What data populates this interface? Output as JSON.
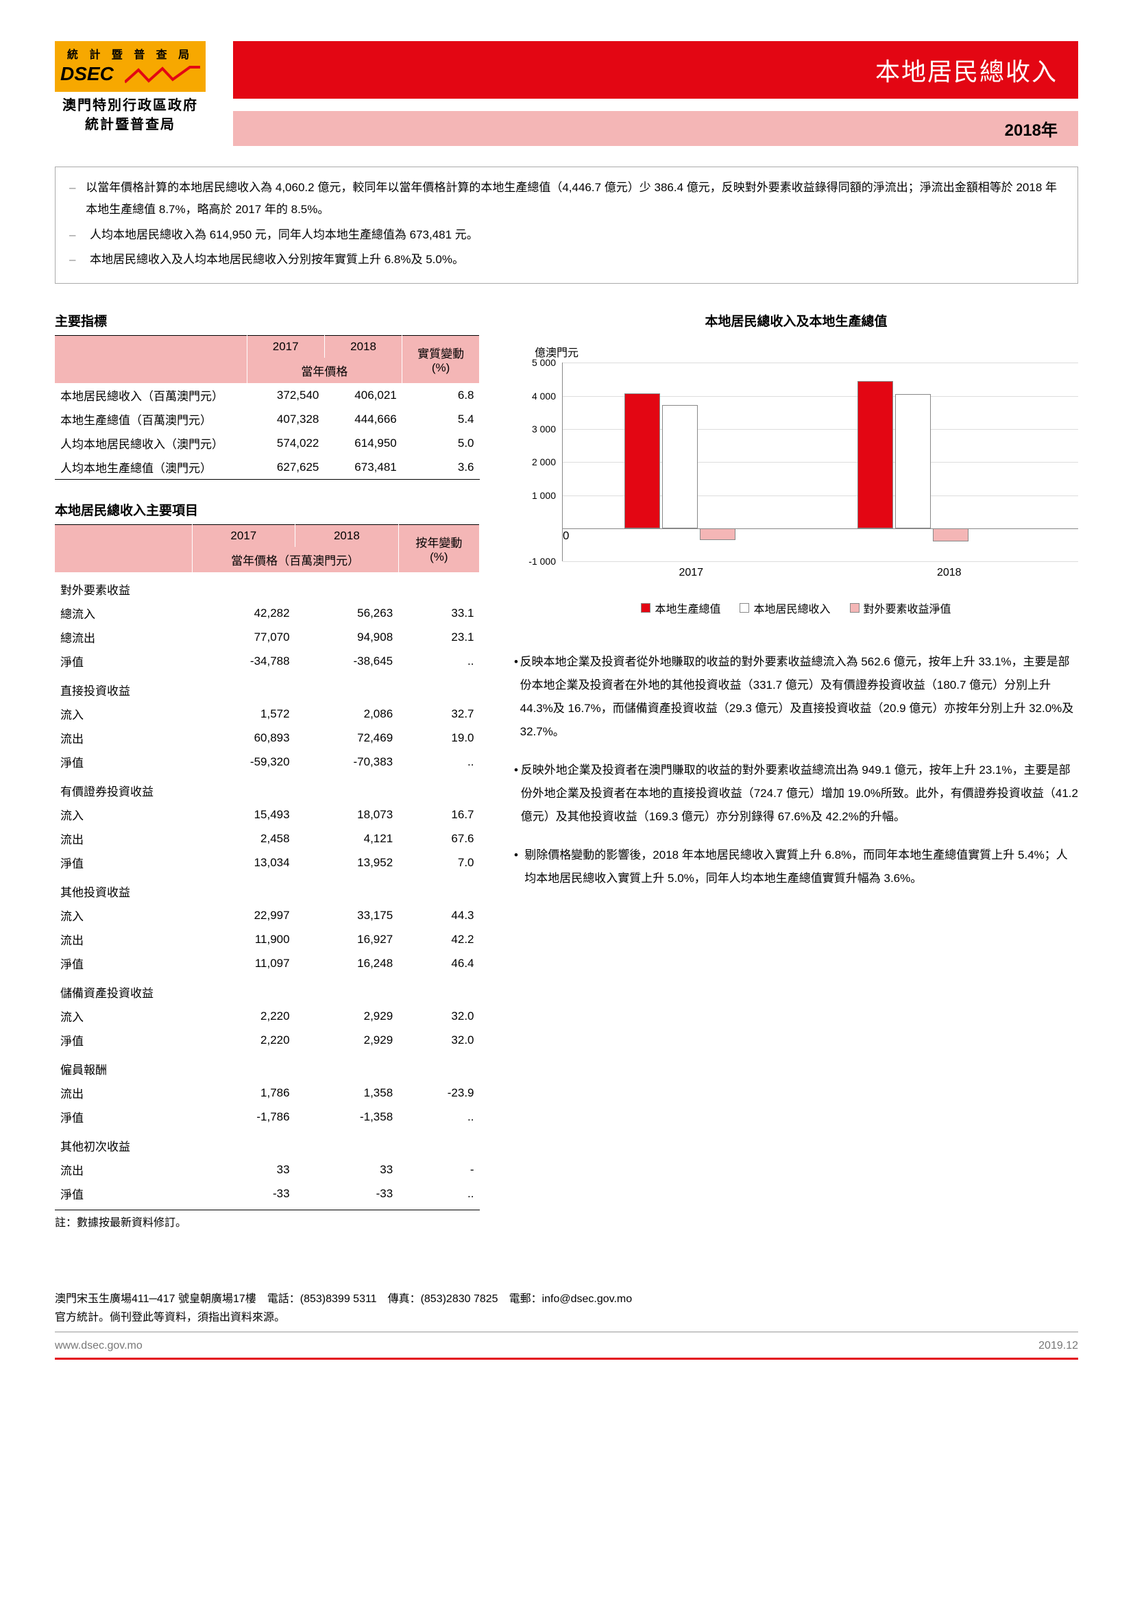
{
  "header": {
    "logo_top": "統 計 暨 普 查 局",
    "logo_text": "DSEC",
    "logo_sub1": "澳門特別行政區政府",
    "logo_sub2": "統計暨普查局",
    "title": "本地居民總收入",
    "year": "2018年"
  },
  "summary": [
    "以當年價格計算的本地居民總收入為 4,060.2 億元，較同年以當年價格計算的本地生產總值（4,446.7 億元）少 386.4 億元，反映對外要素收益錄得同額的淨流出；淨流出金額相等於 2018 年本地生產總值 8.7%，略高於 2017 年的 8.5%。",
    "人均本地居民總收入為 614,950 元，同年人均本地生產總值為 673,481 元。",
    "本地居民總收入及人均本地居民總收入分別按年實質上升 6.8%及 5.0%。"
  ],
  "table1": {
    "title": "主要指標",
    "h_2017": "2017",
    "h_2018": "2018",
    "h_change": "實質變動",
    "h_price": "當年價格",
    "h_pct": "(%)",
    "rows": [
      {
        "label": "本地居民總收入（百萬澳門元）",
        "v2017": "372,540",
        "v2018": "406,021",
        "chg": "6.8"
      },
      {
        "label": "本地生產總值（百萬澳門元）",
        "v2017": "407,328",
        "v2018": "444,666",
        "chg": "5.4"
      },
      {
        "label": "人均本地居民總收入（澳門元）",
        "v2017": "574,022",
        "v2018": "614,950",
        "chg": "5.0"
      },
      {
        "label": "人均本地生產總值（澳門元）",
        "v2017": "627,625",
        "v2018": "673,481",
        "chg": "3.6"
      }
    ]
  },
  "table2": {
    "title": "本地居民總收入主要項目",
    "h_2017": "2017",
    "h_2018": "2018",
    "h_change": "按年變動",
    "h_price": "當年價格（百萬澳門元）",
    "h_pct": "(%)",
    "groups": [
      {
        "head": "對外要素收益",
        "rows": [
          {
            "label": "總流入",
            "v2017": "42,282",
            "v2018": "56,263",
            "chg": "33.1"
          },
          {
            "label": "總流出",
            "v2017": "77,070",
            "v2018": "94,908",
            "chg": "23.1"
          },
          {
            "label": "淨值",
            "v2017": "-34,788",
            "v2018": "-38,645",
            "chg": ".."
          }
        ]
      },
      {
        "head": "直接投資收益",
        "rows": [
          {
            "label": "流入",
            "v2017": "1,572",
            "v2018": "2,086",
            "chg": "32.7"
          },
          {
            "label": "流出",
            "v2017": "60,893",
            "v2018": "72,469",
            "chg": "19.0"
          },
          {
            "label": "淨值",
            "v2017": "-59,320",
            "v2018": "-70,383",
            "chg": ".."
          }
        ]
      },
      {
        "head": "有價證券投資收益",
        "rows": [
          {
            "label": "流入",
            "v2017": "15,493",
            "v2018": "18,073",
            "chg": "16.7"
          },
          {
            "label": "流出",
            "v2017": "2,458",
            "v2018": "4,121",
            "chg": "67.6"
          },
          {
            "label": "淨值",
            "v2017": "13,034",
            "v2018": "13,952",
            "chg": "7.0"
          }
        ]
      },
      {
        "head": "其他投資收益",
        "rows": [
          {
            "label": "流入",
            "v2017": "22,997",
            "v2018": "33,175",
            "chg": "44.3"
          },
          {
            "label": "流出",
            "v2017": "11,900",
            "v2018": "16,927",
            "chg": "42.2"
          },
          {
            "label": "淨值",
            "v2017": "11,097",
            "v2018": "16,248",
            "chg": "46.4"
          }
        ]
      },
      {
        "head": "儲備資產投資收益",
        "rows": [
          {
            "label": "流入",
            "v2017": "2,220",
            "v2018": "2,929",
            "chg": "32.0"
          },
          {
            "label": "淨值",
            "v2017": "2,220",
            "v2018": "2,929",
            "chg": "32.0"
          }
        ]
      },
      {
        "head": "僱員報酬",
        "rows": [
          {
            "label": "流出",
            "v2017": "1,786",
            "v2018": "1,358",
            "chg": "-23.9"
          },
          {
            "label": "淨值",
            "v2017": "-1,786",
            "v2018": "-1,358",
            "chg": ".."
          }
        ]
      },
      {
        "head": "其他初次收益",
        "rows": [
          {
            "label": "流出",
            "v2017": "33",
            "v2018": "33",
            "chg": "-"
          },
          {
            "label": "淨值",
            "v2017": "-33",
            "v2018": "-33",
            "chg": ".."
          }
        ]
      }
    ],
    "note": "註：數據按最新資料修訂。"
  },
  "chart": {
    "title": "本地居民總收入及本地生產總值",
    "ylabel": "億澳門元",
    "ylim": [
      -1000,
      5000
    ],
    "yticks": [
      "-1 000",
      "0",
      "1 000",
      "2 000",
      "3 000",
      "4 000",
      "5 000"
    ],
    "categories": [
      "2017",
      "2018"
    ],
    "series": [
      {
        "name": "本地生產總值",
        "color": "#e30613",
        "values": [
          4073,
          4447
        ]
      },
      {
        "name": "本地居民總收入",
        "color": "#ffffff",
        "values": [
          3725,
          4060
        ]
      },
      {
        "name": "對外要素收益淨值",
        "color": "#f4b6b6",
        "values": [
          -348,
          -386
        ]
      }
    ],
    "legend": [
      "本地生產總值",
      "本地居民總收入",
      "對外要素收益淨值"
    ]
  },
  "bullets": [
    "反映本地企業及投資者從外地賺取的收益的對外要素收益總流入為 562.6 億元，按年上升 33.1%，主要是部份本地企業及投資者在外地的其他投資收益（331.7 億元）及有價證券投資收益（180.7 億元）分別上升 44.3%及 16.7%，而儲備資產投資收益（29.3 億元）及直接投資收益（20.9 億元）亦按年分別上升 32.0%及 32.7%。",
    "反映外地企業及投資者在澳門賺取的收益的對外要素收益總流出為 949.1 億元，按年上升 23.1%，主要是部份外地企業及投資者在本地的直接投資收益（724.7 億元）增加 19.0%所致。此外，有價證券投資收益（41.2 億元）及其他投資收益（169.3 億元）亦分別錄得 67.6%及 42.2%的升幅。",
    "剔除價格變動的影響後，2018 年本地居民總收入實質上升 6.8%，而同年本地生產總值實質上升 5.4%；人均本地居民總收入實質上升 5.0%，同年人均本地生產總值實質升幅為 3.6%。"
  ],
  "footer": {
    "address": "澳門宋玉生廣場411─417 號皇朝廣場17樓　電話：(853)8399 5311　傳真：(853)2830 7825　電郵：info@dsec.gov.mo",
    "note": "官方統計。倘刊登此等資料，須指出資料來源。",
    "url": "www.dsec.gov.mo",
    "date": "2019.12"
  },
  "colors": {
    "red": "#e30613",
    "pink": "#f4b6b6",
    "orange": "#f7a800"
  }
}
